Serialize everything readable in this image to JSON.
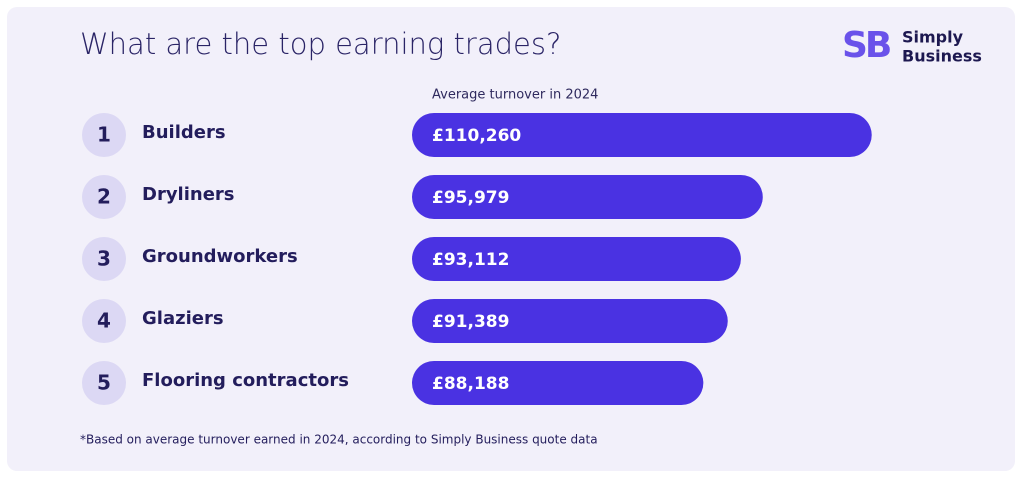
{
  "chart_data": {
    "type": "bar",
    "orientation": "horizontal",
    "title": "What are the top earning trades?",
    "subtitle": "Average turnover in 2024",
    "ranks": [
      "1",
      "2",
      "3",
      "4",
      "5"
    ],
    "categories": [
      "Builders",
      "Dryliners",
      "Groundworkers",
      "Glaziers",
      "Flooring contractors"
    ],
    "values": [
      110260,
      95979,
      93112,
      91389,
      88188
    ],
    "value_labels": [
      "£110,260",
      "£95,979",
      "£93,112",
      "£91,389",
      "£88,188"
    ],
    "xlim": [
      50000,
      112000
    ],
    "color": "#4a32e2",
    "footnote": "*Based on average turnover earned in 2024, according to Simply Business quote data",
    "logo": {
      "mark": "SB",
      "line1": "Simply",
      "line2": "Business"
    }
  }
}
